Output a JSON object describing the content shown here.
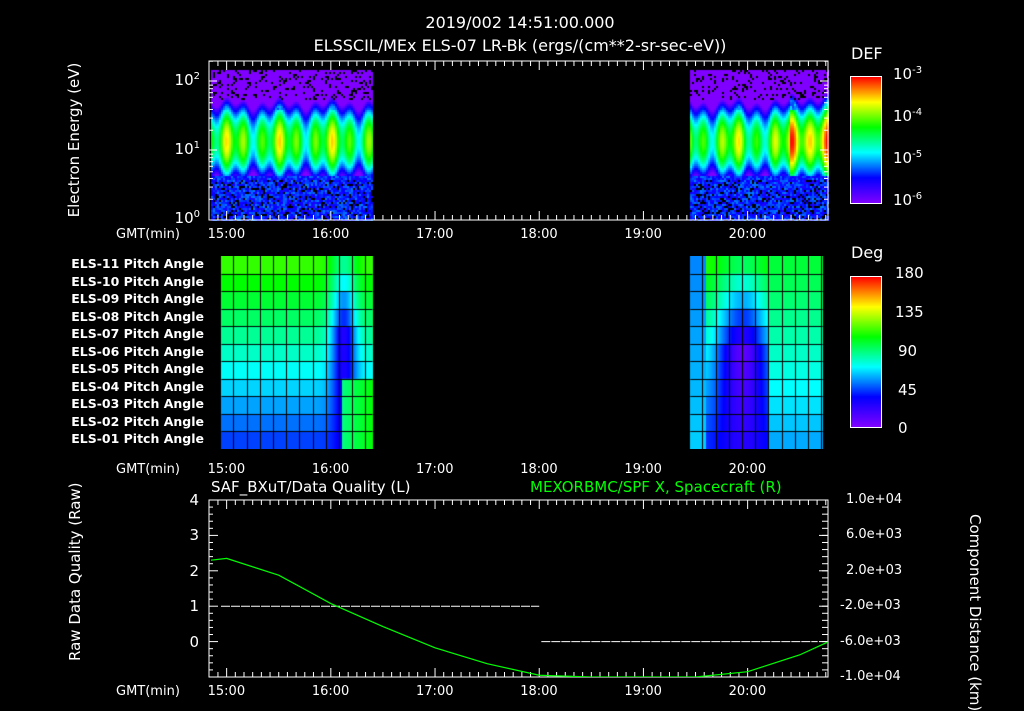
{
  "header": {
    "datetime": "2019/002 14:51:00.000",
    "title": "ELSSCIL/MEx ELS-07 LR-Bk  (ergs/(cm**2-sr-sec-eV))"
  },
  "time_axis": {
    "label": "GMT(min)",
    "ticks": [
      "15:00",
      "16:00",
      "17:00",
      "18:00",
      "19:00",
      "20:00"
    ]
  },
  "colors": {
    "background": "#000000",
    "axis": "#ffffff",
    "curve": "#00ff00",
    "label_green": "#00ff00"
  },
  "chart_data": [
    {
      "type": "heatmap",
      "title": "ELSSCIL/MEx ELS-07 LR-Bk  (ergs/(cm**2-sr-sec-eV))",
      "ylabel": "Electron Energy (eV)",
      "yscale": "log",
      "ylim": [
        1,
        200
      ],
      "ytick_labels": [
        {
          "base": "10",
          "exp": "2"
        },
        {
          "base": "10",
          "exp": "1"
        },
        {
          "base": "10",
          "exp": "0"
        }
      ],
      "xlim_hours": [
        14.85,
        20.78
      ],
      "data_intervals_hours": [
        [
          14.85,
          16.4
        ],
        [
          19.45,
          20.78
        ]
      ],
      "colorbar": {
        "label": "DEF",
        "scale": "log",
        "range": [
          1e-06,
          0.001
        ],
        "tick_labels": [
          {
            "base": "10",
            "exp": "-3"
          },
          {
            "base": "10",
            "exp": "-4"
          },
          {
            "base": "10",
            "exp": "-5"
          },
          {
            "base": "10",
            "exp": "-6"
          }
        ]
      },
      "peak_energy_eV": 15
    },
    {
      "type": "heatmap",
      "title": "Pitch Angle",
      "rows": [
        "ELS-11 Pitch Angle",
        "ELS-10 Pitch Angle",
        "ELS-09 Pitch Angle",
        "ELS-08 Pitch Angle",
        "ELS-07 Pitch Angle",
        "ELS-06 Pitch Angle",
        "ELS-05 Pitch Angle",
        "ELS-04 Pitch Angle",
        "ELS-03 Pitch Angle",
        "ELS-02 Pitch Angle",
        "ELS-01 Pitch Angle"
      ],
      "data_intervals_hours": [
        [
          14.95,
          16.4
        ],
        [
          19.45,
          20.72
        ]
      ],
      "colorbar": {
        "label": "Deg",
        "range": [
          0,
          180
        ],
        "tick_labels": [
          "180",
          "135",
          "90",
          "45",
          "0"
        ]
      }
    },
    {
      "type": "line",
      "title_left": "SAF_BXuT/Data Quality (L)",
      "title_right": "MEXORBMC/SPF X, Spacecraft (R)",
      "ylabel_left": "Raw Data Quality (Raw)",
      "ylabel_right": "Component Distance (km)",
      "ylim_left": [
        -1,
        4
      ],
      "yticks_left": [
        "4",
        "3",
        "2",
        "1",
        "0"
      ],
      "ylim_right": [
        -10000,
        10000
      ],
      "yticks_right": [
        "1.0e+04",
        "6.0e+03",
        "2.0e+03",
        "-2.0e+03",
        "-6.0e+03",
        "-1.0e+04"
      ],
      "series": [
        {
          "name": "Data Quality",
          "axis": "left",
          "color": "#ffffff",
          "x": [
            14.85,
            18.0,
            18.02,
            20.72
          ],
          "y": [
            1,
            1,
            0,
            0
          ]
        },
        {
          "name": "Spacecraft X",
          "axis": "right",
          "color": "#00ff00",
          "x": [
            14.85,
            15.0,
            15.5,
            16.0,
            16.5,
            17.0,
            17.5,
            18.0,
            18.5,
            19.0,
            19.5,
            20.0,
            20.5,
            20.78
          ],
          "y": [
            3200,
            3400,
            1500,
            -1700,
            -4300,
            -6700,
            -8500,
            -9800,
            -10600,
            -10900,
            -10500,
            -9400,
            -7500,
            -6000
          ]
        }
      ]
    }
  ]
}
